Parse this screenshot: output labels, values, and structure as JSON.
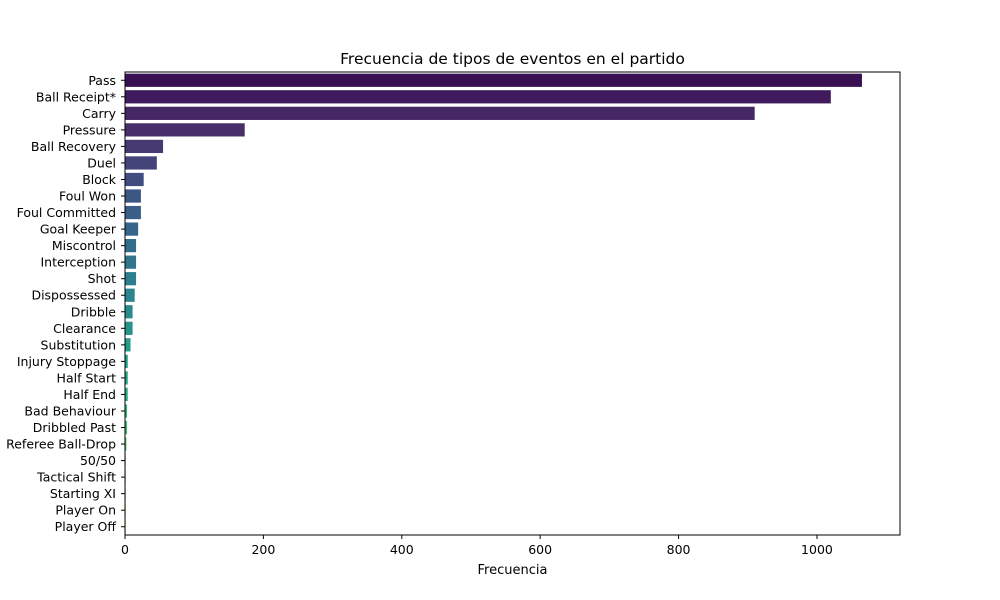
{
  "chart_data": {
    "type": "bar",
    "orientation": "horizontal",
    "title": "Frecuencia de tipos de eventos en el partido",
    "xlabel": "Frecuencia",
    "ylabel": "",
    "xlim": [
      0,
      1120
    ],
    "xticks": [
      0,
      200,
      400,
      600,
      800,
      1000
    ],
    "xtick_labels": [
      "0",
      "200",
      "400",
      "600",
      "800",
      "1000"
    ],
    "grid": false,
    "legend": "none",
    "colormap": "viridis (dark purple to teal, top to bottom)",
    "categories": [
      "Pass",
      "Ball Receipt*",
      "Carry",
      "Pressure",
      "Ball Recovery",
      "Duel",
      "Block",
      "Foul Won",
      "Foul Committed",
      "Goal Keeper",
      "Miscontrol",
      "Interception",
      "Shot",
      "Dispossessed",
      "Dribble",
      "Clearance",
      "Substitution",
      "Injury Stoppage",
      "Half Start",
      "Half End",
      "Bad Behaviour",
      "Dribbled Past",
      "Referee Ball-Drop",
      "50/50",
      "Tactical Shift",
      "Starting XI",
      "Player On",
      "Player Off"
    ],
    "values": [
      1065,
      1020,
      910,
      173,
      55,
      46,
      27,
      23,
      23,
      19,
      16,
      16,
      16,
      14,
      11,
      11,
      8,
      4,
      4,
      4,
      3,
      3,
      2,
      1,
      1,
      1,
      1,
      1
    ],
    "colors": [
      "#3a0f52",
      "#3f1a5c",
      "#442763",
      "#47306a",
      "#463a72",
      "#44447b",
      "#404d80",
      "#3c5784",
      "#395e88",
      "#35668a",
      "#326e8c",
      "#2f768d",
      "#2d7e8e",
      "#2a858e",
      "#288c8e",
      "#26948d",
      "#249b8b",
      "#24a289",
      "#26a986",
      "#2daf82",
      "#36b67d",
      "#42bc77",
      "#50c270",
      "#60c867",
      "#72cd5c",
      "#86d350",
      "#9bd843",
      "#b0dc35"
    ]
  }
}
